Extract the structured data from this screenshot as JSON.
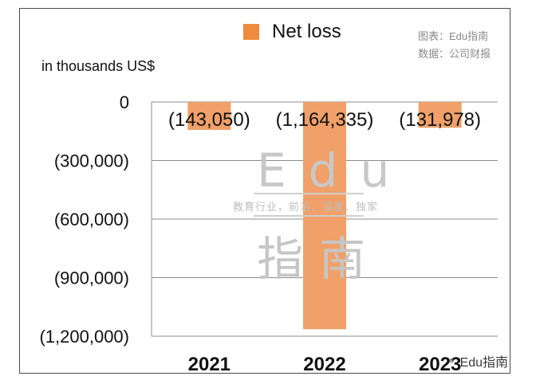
{
  "chart_data": {
    "type": "bar",
    "title": "",
    "xlabel": "",
    "ylabel": "in thousands US$",
    "legend": {
      "entry": "Net loss",
      "position": "top-center"
    },
    "categories": [
      "2021",
      "2022",
      "2023"
    ],
    "series": [
      {
        "name": "Net loss",
        "values": [
          -143050,
          -1164335,
          -131978
        ],
        "color": "#F0A068"
      }
    ],
    "data_labels": [
      "(143,050)",
      "(1,164,335)",
      "(131,978)"
    ],
    "y_ticks": [
      0,
      -300000,
      -600000,
      -900000,
      -1200000
    ],
    "y_tick_labels": [
      "0",
      "(300,000)",
      "(600,000)",
      "(900,000)",
      "(1,200,000)"
    ],
    "ylim": [
      -1200000,
      0
    ],
    "grid": true
  },
  "legend_color": "#F08A3C",
  "source": {
    "line1": "图表：Edu指南",
    "line2": "数据：公司财报"
  },
  "watermark": {
    "edu": "Edu",
    "tagline": "教育行业，前沿、深度、独家",
    "zhinan": "指南"
  },
  "brand": {
    "icon": "wechat-icon",
    "text": "Edu指南"
  }
}
